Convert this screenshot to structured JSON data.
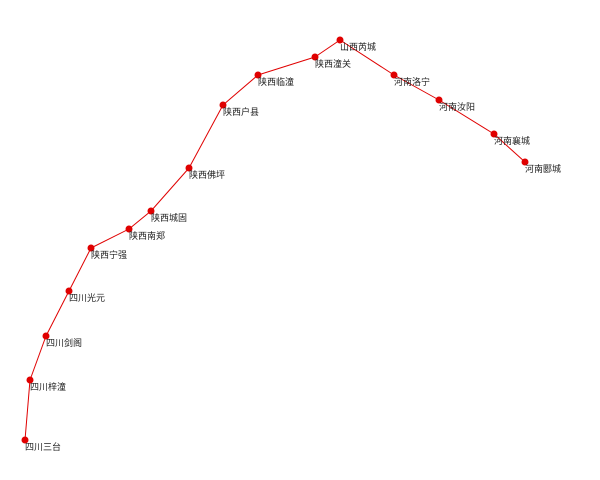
{
  "route": {
    "line_color": "#e00000",
    "node_color": "#e00000",
    "stations": [
      {
        "id": "sichuan-santai",
        "label": "四川三台"
      },
      {
        "id": "sichuan-zitong",
        "label": "四川梓潼"
      },
      {
        "id": "sichuan-jiange",
        "label": "四川剑阁"
      },
      {
        "id": "sichuan-guangyuan",
        "label": "四川光元"
      },
      {
        "id": "shaanxi-ningqiang",
        "label": "陕西宁强"
      },
      {
        "id": "shaanxi-nanzheng",
        "label": "陕西南郑"
      },
      {
        "id": "shaanxi-chenggu",
        "label": "陕西城固"
      },
      {
        "id": "shaanxi-foping",
        "label": "陕西佛坪"
      },
      {
        "id": "shaanxi-huxian",
        "label": "陕西户县"
      },
      {
        "id": "shaanxi-lintong",
        "label": "陕西临潼"
      },
      {
        "id": "shaanxi-tongguan",
        "label": "陕西潼关"
      },
      {
        "id": "shanxi-ruicheng",
        "label": "山西芮城"
      },
      {
        "id": "henan-luoning",
        "label": "河南洛宁"
      },
      {
        "id": "henan-ruyang",
        "label": "河南汝阳"
      },
      {
        "id": "henan-xiangcheng",
        "label": "河南襄城"
      },
      {
        "id": "henan-yancheng",
        "label": "河南郾城"
      }
    ]
  }
}
